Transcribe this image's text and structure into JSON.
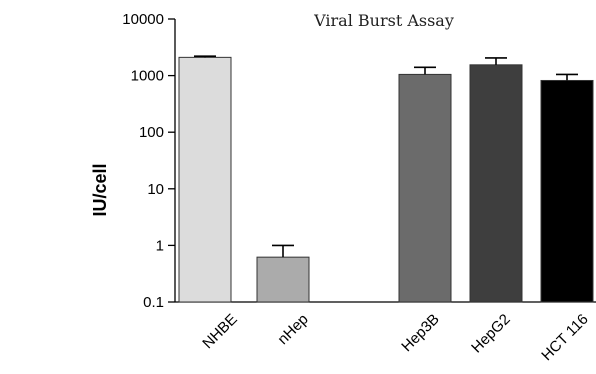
{
  "chart_data": {
    "type": "bar",
    "title": "Viral Burst Assay",
    "xlabel": "",
    "ylabel": "IU/cell",
    "yscale": "log",
    "ylim": [
      0.1,
      10000
    ],
    "yticks": [
      "10000",
      "1000",
      "100",
      "10",
      "1",
      "0.1"
    ],
    "categories": [
      "NHBE",
      "nHep",
      "Hep3B",
      "HepG2",
      "HCT 116"
    ],
    "values": [
      2100,
      0.62,
      1050,
      1550,
      820
    ],
    "error_upper": [
      2200,
      1.0,
      1400,
      2050,
      1050
    ],
    "colors": [
      "#dcdcdc",
      "#ababab",
      "#6b6b6b",
      "#3e3e3e",
      "#000000"
    ],
    "grid": false,
    "legend": "none"
  }
}
